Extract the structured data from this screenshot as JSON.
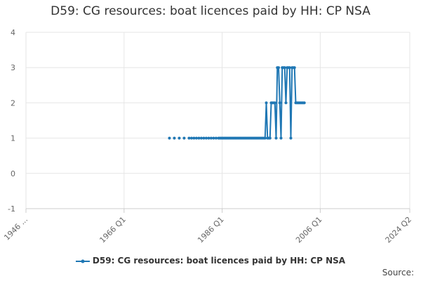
{
  "chart_data": {
    "type": "line",
    "title": "D59: CG resources: boat licences paid by HH: CP NSA",
    "xlabel": "",
    "ylabel": "",
    "x_tick_labels": [
      "1946 ...",
      "1966 Q1",
      "1986 Q1",
      "2006 Q1",
      "2024 Q2"
    ],
    "x_ticks": [
      1946.0,
      1966.0,
      1986.0,
      2006.0,
      2024.25
    ],
    "xlim": [
      1946.0,
      2024.25
    ],
    "ylim": [
      -1,
      4
    ],
    "y_ticks": [
      -1,
      0,
      1,
      2,
      3,
      4
    ],
    "grid": true,
    "legend_position": "bottom",
    "series": [
      {
        "name": "D59: CG resources: boat licences paid by HH: CP NSA",
        "color": "#1f77b4",
        "points": [
          [
            1975.25,
            1
          ],
          [
            1976.25,
            1
          ],
          [
            1977.25,
            1
          ],
          [
            1978.25,
            1
          ],
          [
            1979.25,
            1
          ],
          [
            1979.75,
            1
          ],
          [
            1980.25,
            1
          ],
          [
            1980.75,
            1
          ],
          [
            1981.25,
            1
          ],
          [
            1981.75,
            1
          ],
          [
            1982.25,
            1
          ],
          [
            1982.75,
            1
          ],
          [
            1983.25,
            1
          ],
          [
            1983.75,
            1
          ],
          [
            1984.25,
            1
          ],
          [
            1984.75,
            1
          ],
          [
            1985.25,
            1
          ],
          [
            1985.5,
            1
          ],
          [
            1985.75,
            1
          ],
          [
            1986.0,
            1
          ],
          [
            1986.25,
            1
          ],
          [
            1986.5,
            1
          ],
          [
            1986.75,
            1
          ],
          [
            1987.0,
            1
          ],
          [
            1987.25,
            1
          ],
          [
            1987.5,
            1
          ],
          [
            1987.75,
            1
          ],
          [
            1988.0,
            1
          ],
          [
            1988.25,
            1
          ],
          [
            1988.5,
            1
          ],
          [
            1988.75,
            1
          ],
          [
            1989.0,
            1
          ],
          [
            1989.25,
            1
          ],
          [
            1989.5,
            1
          ],
          [
            1989.75,
            1
          ],
          [
            1990.0,
            1
          ],
          [
            1990.25,
            1
          ],
          [
            1990.5,
            1
          ],
          [
            1990.75,
            1
          ],
          [
            1991.0,
            1
          ],
          [
            1991.25,
            1
          ],
          [
            1991.5,
            1
          ],
          [
            1991.75,
            1
          ],
          [
            1992.0,
            1
          ],
          [
            1992.25,
            1
          ],
          [
            1992.5,
            1
          ],
          [
            1992.75,
            1
          ],
          [
            1993.0,
            1
          ],
          [
            1993.25,
            1
          ],
          [
            1993.5,
            1
          ],
          [
            1993.75,
            1
          ],
          [
            1994.0,
            1
          ],
          [
            1994.25,
            1
          ],
          [
            1994.5,
            1
          ],
          [
            1994.75,
            1
          ],
          [
            1995.0,
            2
          ],
          [
            1995.25,
            1
          ],
          [
            1995.5,
            1
          ],
          [
            1995.75,
            1
          ],
          [
            1996.0,
            2
          ],
          [
            1996.25,
            2
          ],
          [
            1996.5,
            2
          ],
          [
            1996.75,
            2
          ],
          [
            1997.0,
            1
          ],
          [
            1997.25,
            3
          ],
          [
            1997.5,
            3
          ],
          [
            1997.75,
            2
          ],
          [
            1998.0,
            1
          ],
          [
            1998.25,
            3
          ],
          [
            1998.5,
            3
          ],
          [
            1998.75,
            3
          ],
          [
            1999.0,
            2
          ],
          [
            1999.25,
            3
          ],
          [
            1999.5,
            3
          ],
          [
            1999.75,
            3
          ],
          [
            2000.0,
            1
          ],
          [
            2000.25,
            3
          ],
          [
            2000.5,
            3
          ],
          [
            2000.75,
            3
          ],
          [
            2001.0,
            2
          ],
          [
            2001.25,
            2
          ],
          [
            2001.5,
            2
          ],
          [
            2001.75,
            2
          ],
          [
            2002.0,
            2
          ],
          [
            2002.25,
            2
          ],
          [
            2002.5,
            2
          ],
          [
            2002.75,
            2
          ]
        ]
      }
    ]
  },
  "source_label": "Source:"
}
